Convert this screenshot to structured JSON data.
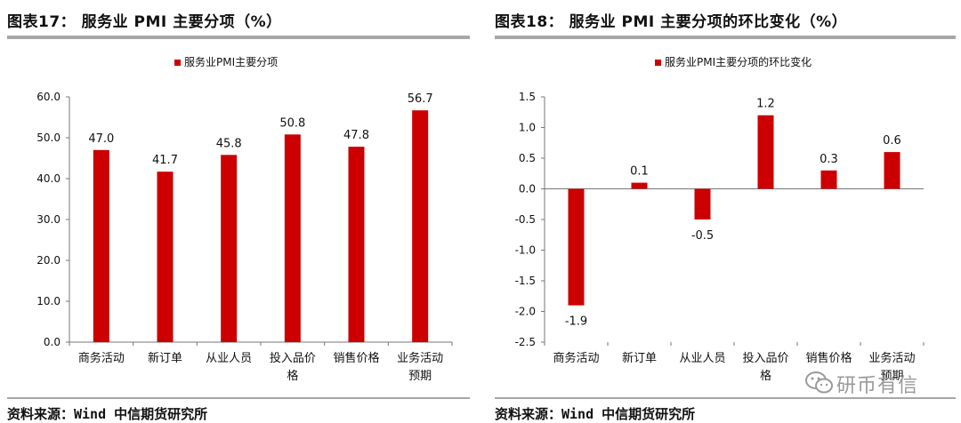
{
  "chart_data": [
    {
      "type": "bar",
      "title": "图表17： 服务业 PMI 主要分项（%）",
      "legend": "服务业PMI主要分项",
      "legend_position": "top-center",
      "categories": [
        "商务活动",
        "新订单",
        "从业人员",
        "投入品价格",
        "销售价格",
        "业务活动预期"
      ],
      "category_lines": [
        [
          "商务活动"
        ],
        [
          "新订单"
        ],
        [
          "从业人员"
        ],
        [
          "投入品价",
          "格"
        ],
        [
          "销售价格"
        ],
        [
          "业务活动",
          "预期"
        ]
      ],
      "values": [
        47.0,
        41.7,
        45.8,
        50.8,
        47.8,
        56.7
      ],
      "value_labels": [
        "47.0",
        "41.7",
        "45.8",
        "50.8",
        "47.8",
        "56.7"
      ],
      "ylim": [
        0,
        60
      ],
      "yticks": [
        "0.0",
        "10.0",
        "20.0",
        "30.0",
        "40.0",
        "50.0",
        "60.0"
      ],
      "bar_color": "#cc0000",
      "source": "资料来源：Wind 中信期货研究所"
    },
    {
      "type": "bar",
      "title": "图表18： 服务业 PMI 主要分项的环比变化（%）",
      "legend": "服务业PMI主要分项的环比变化",
      "legend_position": "top-center",
      "categories": [
        "商务活动",
        "新订单",
        "从业人员",
        "投入品价格",
        "销售价格",
        "业务活动预期"
      ],
      "category_lines": [
        [
          "商务活动"
        ],
        [
          "新订单"
        ],
        [
          "从业人员"
        ],
        [
          "投入品价",
          "格"
        ],
        [
          "销售价格"
        ],
        [
          "业务活动",
          "预期"
        ]
      ],
      "values": [
        -1.9,
        0.1,
        -0.5,
        1.2,
        0.3,
        0.6
      ],
      "value_labels": [
        "-1.9",
        "0.1",
        "-0.5",
        "1.2",
        "0.3",
        "0.6"
      ],
      "ylim": [
        -2.5,
        1.5
      ],
      "yticks": [
        "-2.5",
        "-2.0",
        "-1.5",
        "-1.0",
        "-0.5",
        "0.0",
        "0.5",
        "1.0",
        "1.5"
      ],
      "bar_color": "#cc0000",
      "source": "资料来源：Wind 中信期货研究所"
    }
  ],
  "watermark": {
    "text": "研币有信",
    "icon": "wechat-icon"
  }
}
